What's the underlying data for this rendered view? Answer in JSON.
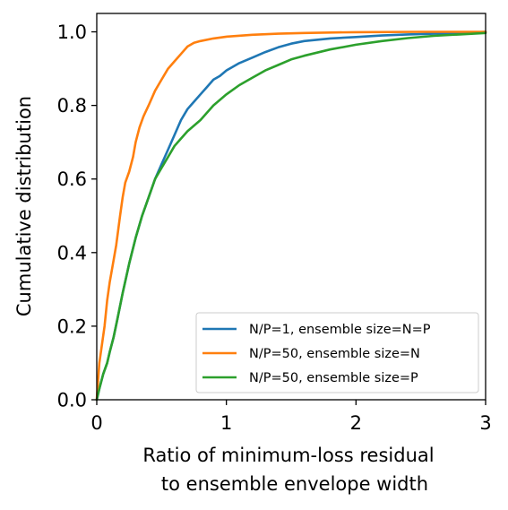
{
  "chart_data": {
    "type": "line",
    "title": "",
    "xlabel_lines": [
      "Ratio of minimum-loss residual",
      "to ensemble envelope width"
    ],
    "ylabel": "Cumulative distribution",
    "xlim": [
      0,
      3
    ],
    "ylim": [
      0,
      1.05
    ],
    "xticks": [
      0,
      1,
      2,
      3
    ],
    "xtick_labels": [
      "0",
      "1",
      "2",
      "3"
    ],
    "yticks": [
      0.0,
      0.2,
      0.4,
      0.6,
      0.8,
      1.0
    ],
    "ytick_labels": [
      "0.0",
      "0.2",
      "0.4",
      "0.6",
      "0.8",
      "1.0"
    ],
    "grid": false,
    "legend_position": "lower-right",
    "series": [
      {
        "name": "N/P=1, ensemble size=N=P",
        "color": "#1f77b4",
        "x": [
          0,
          0.02,
          0.05,
          0.08,
          0.1,
          0.13,
          0.16,
          0.2,
          0.25,
          0.3,
          0.35,
          0.4,
          0.45,
          0.5,
          0.55,
          0.6,
          0.65,
          0.7,
          0.75,
          0.8,
          0.85,
          0.9,
          0.95,
          1.0,
          1.1,
          1.2,
          1.3,
          1.4,
          1.5,
          1.6,
          1.8,
          2.0,
          2.2,
          2.4,
          2.6,
          2.8,
          3.0
        ],
        "y": [
          0,
          0.03,
          0.07,
          0.1,
          0.13,
          0.17,
          0.22,
          0.29,
          0.37,
          0.44,
          0.5,
          0.55,
          0.6,
          0.64,
          0.68,
          0.72,
          0.76,
          0.79,
          0.81,
          0.83,
          0.85,
          0.87,
          0.88,
          0.895,
          0.915,
          0.93,
          0.945,
          0.958,
          0.968,
          0.975,
          0.982,
          0.986,
          0.99,
          0.993,
          0.995,
          0.997,
          1.0
        ]
      },
      {
        "name": "N/P=50, ensemble size=N",
        "color": "#ff7f0e",
        "x": [
          0,
          0.01,
          0.02,
          0.04,
          0.06,
          0.08,
          0.1,
          0.12,
          0.15,
          0.18,
          0.2,
          0.22,
          0.25,
          0.28,
          0.3,
          0.33,
          0.36,
          0.4,
          0.45,
          0.5,
          0.55,
          0.6,
          0.65,
          0.7,
          0.75,
          0.8,
          0.9,
          1.0,
          1.2,
          1.4,
          1.6,
          1.8,
          2.0,
          2.5,
          3.0
        ],
        "y": [
          0,
          0.05,
          0.1,
          0.15,
          0.2,
          0.27,
          0.32,
          0.36,
          0.42,
          0.5,
          0.55,
          0.59,
          0.62,
          0.66,
          0.7,
          0.74,
          0.77,
          0.8,
          0.84,
          0.87,
          0.9,
          0.92,
          0.94,
          0.96,
          0.97,
          0.975,
          0.982,
          0.987,
          0.992,
          0.995,
          0.997,
          0.998,
          0.999,
          1.0,
          1.0
        ]
      },
      {
        "name": "N/P=50, ensemble size=P",
        "color": "#2ca02c",
        "x": [
          0,
          0.02,
          0.05,
          0.08,
          0.1,
          0.13,
          0.16,
          0.2,
          0.25,
          0.3,
          0.35,
          0.4,
          0.45,
          0.5,
          0.55,
          0.6,
          0.65,
          0.7,
          0.8,
          0.9,
          1.0,
          1.1,
          1.2,
          1.3,
          1.4,
          1.5,
          1.6,
          1.8,
          2.0,
          2.2,
          2.4,
          2.6,
          2.8,
          3.0
        ],
        "y": [
          0,
          0.03,
          0.07,
          0.1,
          0.13,
          0.17,
          0.22,
          0.29,
          0.37,
          0.44,
          0.5,
          0.55,
          0.6,
          0.63,
          0.66,
          0.69,
          0.71,
          0.73,
          0.76,
          0.8,
          0.83,
          0.855,
          0.875,
          0.895,
          0.91,
          0.925,
          0.935,
          0.952,
          0.965,
          0.975,
          0.983,
          0.989,
          0.993,
          0.997
        ]
      }
    ]
  }
}
